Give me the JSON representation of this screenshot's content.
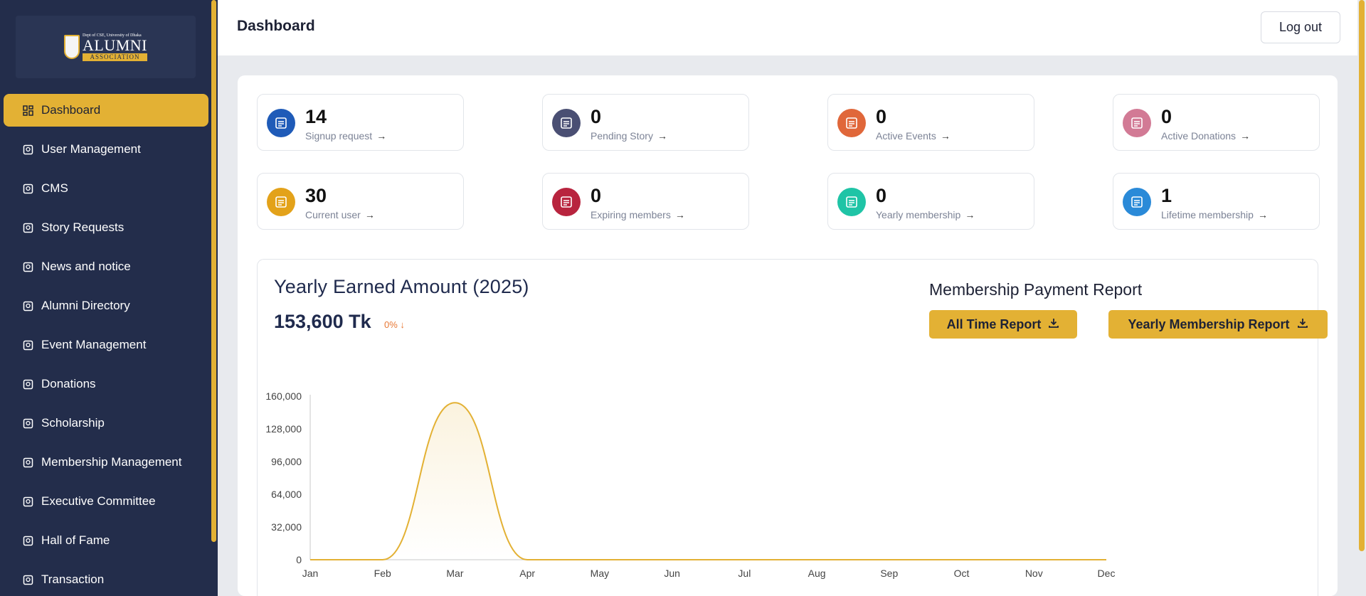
{
  "sidebar": {
    "logo": {
      "small": "Dept of CSE, University of Dhaka",
      "big": "ALUMNI",
      "bar": "ASSOCIATION"
    },
    "items": [
      {
        "label": "Dashboard",
        "icon": "grid-icon",
        "active": true
      },
      {
        "label": "User Management",
        "icon": "users-gear-icon"
      },
      {
        "label": "CMS",
        "icon": "cms-icon"
      },
      {
        "label": "Story Requests",
        "icon": "story-icon"
      },
      {
        "label": "News and notice",
        "icon": "news-icon"
      },
      {
        "label": "Alumni Directory",
        "icon": "directory-icon"
      },
      {
        "label": "Event Management",
        "icon": "calendar-icon"
      },
      {
        "label": "Donations",
        "icon": "donation-icon"
      },
      {
        "label": "Scholarship",
        "icon": "scholarship-icon"
      },
      {
        "label": "Membership Management",
        "icon": "membership-icon"
      },
      {
        "label": "Executive Committee",
        "icon": "committee-icon"
      },
      {
        "label": "Hall of Fame",
        "icon": "trophy-icon"
      },
      {
        "label": "Transaction",
        "icon": "transaction-icon"
      }
    ]
  },
  "header": {
    "title": "Dashboard",
    "logout_label": "Log out"
  },
  "stats": [
    {
      "value": "14",
      "label": "Signup request",
      "color": "#1f5bb8",
      "icon": "signup-icon"
    },
    {
      "value": "0",
      "label": "Pending Story",
      "color": "#4a4f73",
      "icon": "pending-story-icon"
    },
    {
      "value": "0",
      "label": "Active Events",
      "color": "#e0673a",
      "icon": "events-icon"
    },
    {
      "value": "0",
      "label": "Active Donations",
      "color": "#d27a95",
      "icon": "donations-icon"
    },
    {
      "value": "30",
      "label": "Current user",
      "color": "#e3a21a",
      "icon": "current-user-icon"
    },
    {
      "value": "0",
      "label": "Expiring members",
      "color": "#b8243e",
      "icon": "expiring-icon"
    },
    {
      "value": "0",
      "label": "Yearly membership",
      "color": "#1fc4a6",
      "icon": "yearly-membership-icon"
    },
    {
      "value": "1",
      "label": "Lifetime membership",
      "color": "#2a8ad8",
      "icon": "lifetime-membership-icon"
    }
  ],
  "earnings": {
    "title": "Yearly Earned Amount (2025)",
    "amount": "153,600 Tk",
    "change": "0% ↓"
  },
  "report": {
    "title": "Membership Payment Report",
    "all_time_label": "All Time Report",
    "yearly_label": "Yearly Membership Report"
  },
  "colors": {
    "accent": "#e3b134",
    "sidebar": "#232d4b"
  },
  "chart_data": {
    "type": "area",
    "categories": [
      "Jan",
      "Feb",
      "Mar",
      "Apr",
      "May",
      "Jun",
      "Jul",
      "Aug",
      "Sep",
      "Oct",
      "Nov",
      "Dec"
    ],
    "values": [
      0,
      0,
      153600,
      0,
      0,
      0,
      0,
      0,
      0,
      0,
      0,
      0
    ],
    "ylim": [
      0,
      160000
    ],
    "yticks": [
      "0",
      "32,000",
      "64,000",
      "96,000",
      "128,000",
      "160,000"
    ],
    "ytick_values": [
      0,
      32000,
      64000,
      96000,
      128000,
      160000
    ],
    "xlabel": "",
    "ylabel": "",
    "grid": false,
    "color": "#e3b134"
  }
}
